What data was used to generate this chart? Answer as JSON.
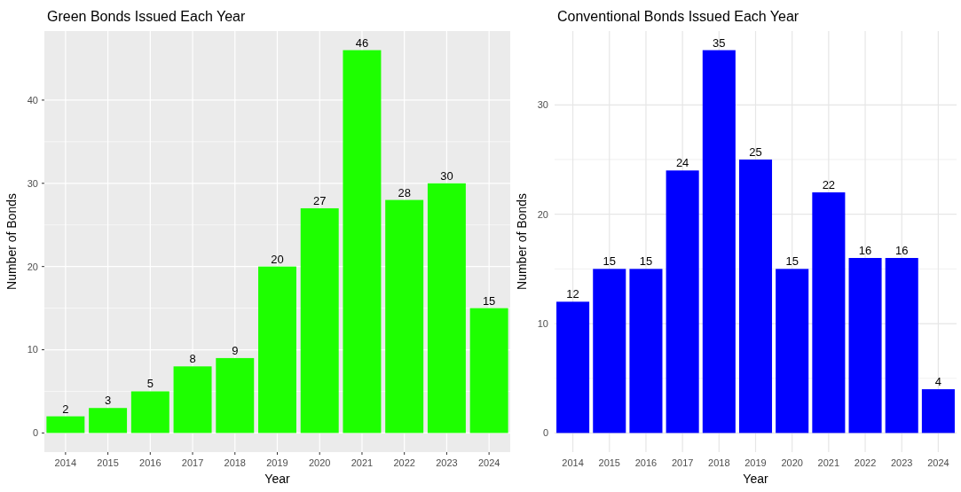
{
  "chart_data": [
    {
      "type": "bar",
      "title": "Green Bonds Issued Each Year",
      "xlabel": "Year",
      "ylabel": "Number of Bonds",
      "categories": [
        "2014",
        "2015",
        "2016",
        "2017",
        "2018",
        "2019",
        "2020",
        "2021",
        "2022",
        "2023",
        "2024"
      ],
      "values": [
        2,
        3,
        5,
        8,
        9,
        20,
        27,
        46,
        28,
        30,
        15
      ],
      "color": "#1eff00",
      "ylim": [
        -2.3,
        48.3
      ],
      "yticks": [
        0,
        10,
        20,
        30,
        40
      ],
      "grid": true,
      "data_labels": true
    },
    {
      "type": "bar",
      "title": "Conventional Bonds Issued Each Year",
      "xlabel": "Year",
      "ylabel": "Number of Bonds",
      "categories": [
        "2014",
        "2015",
        "2016",
        "2017",
        "2018",
        "2019",
        "2020",
        "2021",
        "2022",
        "2023",
        "2024"
      ],
      "values": [
        12,
        15,
        15,
        24,
        35,
        25,
        15,
        22,
        16,
        16,
        4
      ],
      "color": "#0000ff",
      "ylim": [
        -1.75,
        36.75
      ],
      "yticks": [
        0,
        10,
        20,
        30
      ],
      "grid": true,
      "data_labels": true
    }
  ]
}
